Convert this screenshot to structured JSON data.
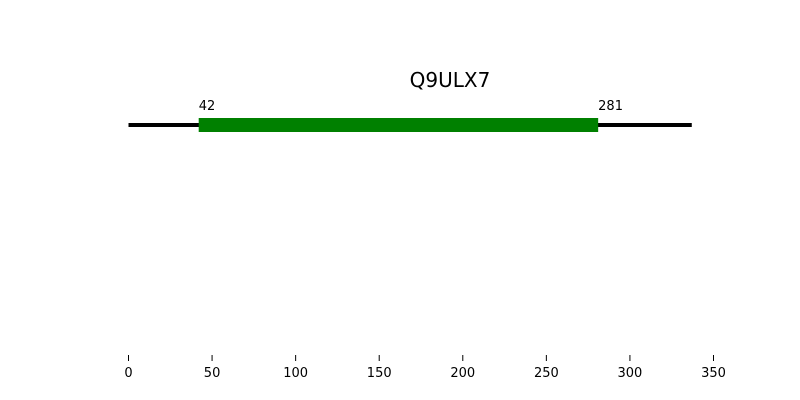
{
  "chart_data": {
    "type": "protein-domain-diagram",
    "title": "Q9ULX7",
    "backbone": {
      "start": 0,
      "end": 337
    },
    "domains": [
      {
        "start": 42,
        "end": 281,
        "start_label": "42",
        "end_label": "281",
        "color": "#008000"
      }
    ],
    "xticks": [
      0,
      50,
      100,
      150,
      200,
      250,
      300,
      350
    ],
    "xtick_labels": [
      "0",
      "50",
      "100",
      "150",
      "200",
      "250",
      "300",
      "350"
    ],
    "xlim": [
      0,
      350
    ],
    "backbone_color": "#000000"
  }
}
